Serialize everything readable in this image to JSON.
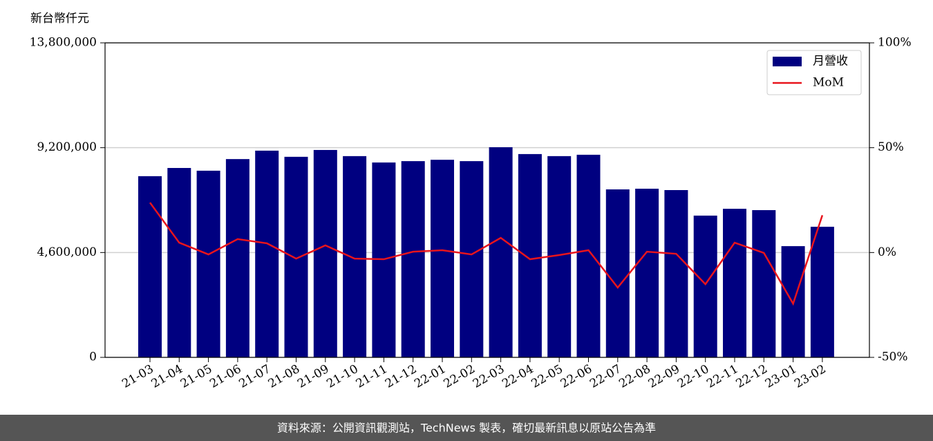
{
  "chart_data": {
    "type": "bar-line",
    "y_label": "新台幣仟元",
    "categories": [
      "21-03",
      "21-04",
      "21-05",
      "21-06",
      "21-07",
      "21-08",
      "21-09",
      "21-10",
      "21-11",
      "21-12",
      "22-01",
      "22-02",
      "22-03",
      "22-04",
      "22-05",
      "22-06",
      "22-07",
      "22-08",
      "22-09",
      "22-10",
      "22-11",
      "22-12",
      "23-01",
      "23-02"
    ],
    "series": [
      {
        "name": "月營收",
        "type": "bar",
        "color": "#000080",
        "values": [
          7950000,
          8310000,
          8190000,
          8700000,
          9070000,
          8800000,
          9100000,
          8830000,
          8550000,
          8610000,
          8670000,
          8610000,
          9220000,
          8920000,
          8830000,
          8890000,
          7370000,
          7400000,
          7340000,
          6220000,
          6520000,
          6460000,
          4880000,
          5730000
        ]
      },
      {
        "name": "MoM",
        "type": "line",
        "axis": "y2",
        "color": "#e8141c",
        "values": [
          23.8,
          4.7,
          -0.9,
          6.4,
          4.4,
          -2.9,
          3.4,
          -2.9,
          -3.2,
          0.4,
          1.1,
          -0.9,
          7.0,
          -3.2,
          -1.2,
          1.1,
          -16.7,
          0.4,
          -0.6,
          -15.1,
          4.7,
          -0.2,
          -24.4,
          17.8
        ]
      }
    ],
    "ylim": [
      0,
      13800000
    ],
    "yticks": [
      0,
      {
        "value": 4600000,
        "label": "4,600,000"
      },
      {
        "value": 9200000,
        "label": "9,200,000"
      },
      {
        "value": 13800000,
        "label": "13,800,000"
      }
    ],
    "y2lim": [
      -50,
      100
    ],
    "y2ticks": [
      {
        "value": -50,
        "label": "-50%"
      },
      {
        "value": 0,
        "label": "0%"
      },
      {
        "value": 50,
        "label": "50%"
      },
      {
        "value": 100,
        "label": "100%"
      }
    ],
    "grid": true,
    "legend": "upper right"
  },
  "footer": "資料來源：公開資訊觀測站，TechNews 製表，確切最新訊息以原站公告為準"
}
